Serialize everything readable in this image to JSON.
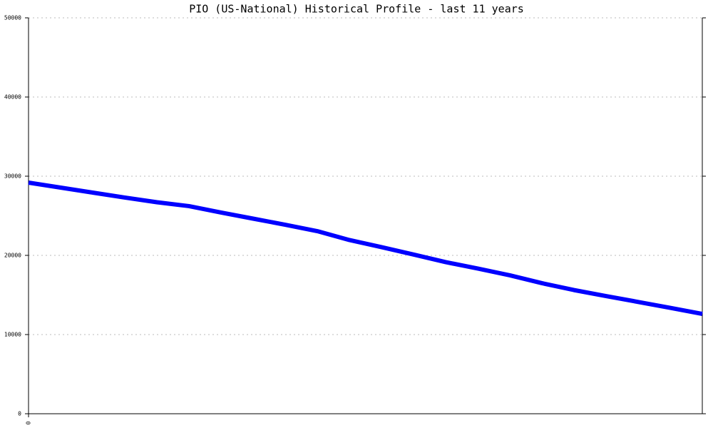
{
  "chart_data": {
    "type": "line",
    "title": "PIO (US-National) Historical Profile - last 11 years",
    "categories": [
      "0",
      null,
      null,
      null,
      null,
      null,
      null,
      null,
      null,
      null,
      null,
      null,
      null,
      null,
      null,
      null,
      null,
      null,
      null,
      null,
      null,
      null
    ],
    "series": [
      {
        "color": "#0000ff",
        "values": [
          29190,
          28560,
          27930,
          27300,
          26710,
          26220,
          25410,
          24640,
          23870,
          23060,
          21940,
          21040,
          20110,
          19150,
          18340,
          17480,
          16490,
          15620,
          14860,
          14120,
          13370,
          12610
        ]
      }
    ],
    "ylim": [
      0,
      50000
    ],
    "yticks": [
      0,
      10000,
      20000,
      30000,
      40000,
      50000
    ],
    "grid": true
  }
}
